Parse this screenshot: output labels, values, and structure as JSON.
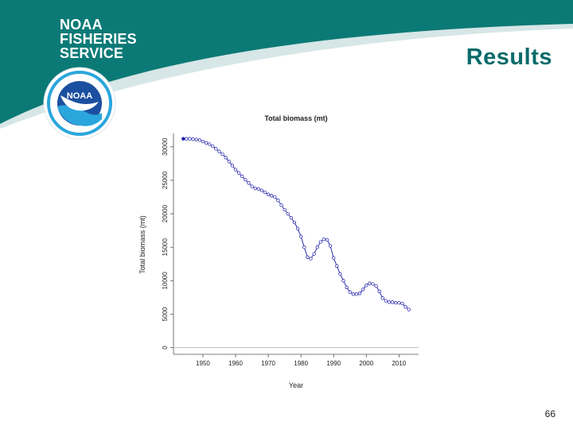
{
  "header": {
    "brand_lines": [
      "NOAA",
      "FISHERIES",
      "SERVICE"
    ],
    "logo_text": "NOAA",
    "slide_title": "Results"
  },
  "footer": {
    "page_number": "66"
  },
  "colors": {
    "banner": "#0b7a76",
    "banner_shadow": "#d7e6e6",
    "title": "#0b6b6b",
    "series": "#1a1aa8",
    "logo_ring": "#2aa6dc",
    "logo_inner": "#1b4fa0"
  },
  "chart_data": {
    "type": "line",
    "title": "Total biomass (mt)",
    "xlabel": "Year",
    "ylabel": "Total biomass (mt)",
    "xlim": [
      1941,
      2016
    ],
    "ylim": [
      -1000,
      32000
    ],
    "xticks": [
      1950,
      1960,
      1970,
      1980,
      1990,
      2000,
      2010
    ],
    "yticks": [
      0,
      5000,
      10000,
      15000,
      20000,
      25000,
      30000
    ],
    "reference_line": 0,
    "markers": "open-circle",
    "first_point_filled": true,
    "series": [
      {
        "name": "Total biomass",
        "x": [
          1944,
          1945,
          1946,
          1947,
          1948,
          1949,
          1950,
          1951,
          1952,
          1953,
          1954,
          1955,
          1956,
          1957,
          1958,
          1959,
          1960,
          1961,
          1962,
          1963,
          1964,
          1965,
          1966,
          1967,
          1968,
          1969,
          1970,
          1971,
          1972,
          1973,
          1974,
          1975,
          1976,
          1977,
          1978,
          1979,
          1980,
          1981,
          1982,
          1983,
          1984,
          1985,
          1986,
          1987,
          1988,
          1989,
          1990,
          1991,
          1992,
          1993,
          1994,
          1995,
          1996,
          1997,
          1998,
          1999,
          2000,
          2001,
          2002,
          2003,
          2004,
          2005,
          2006,
          2007,
          2008,
          2009,
          2010,
          2011,
          2012,
          2013
        ],
        "values": [
          31200,
          31200,
          31200,
          31150,
          31100,
          31000,
          30800,
          30600,
          30400,
          30100,
          29700,
          29300,
          28900,
          28400,
          27800,
          27200,
          26600,
          26100,
          25600,
          25100,
          24600,
          24100,
          23800,
          23700,
          23500,
          23200,
          22900,
          22700,
          22500,
          22000,
          21300,
          20600,
          20000,
          19400,
          18700,
          17800,
          16600,
          15000,
          13500,
          13300,
          14000,
          15000,
          15800,
          16200,
          16100,
          15200,
          13400,
          12200,
          11000,
          10000,
          9000,
          8300,
          8000,
          8000,
          8100,
          8700,
          9300,
          9600,
          9500,
          9200,
          8400,
          7400,
          7000,
          6800,
          6800,
          6700,
          6700,
          6600,
          6100,
          5700
        ]
      }
    ]
  }
}
